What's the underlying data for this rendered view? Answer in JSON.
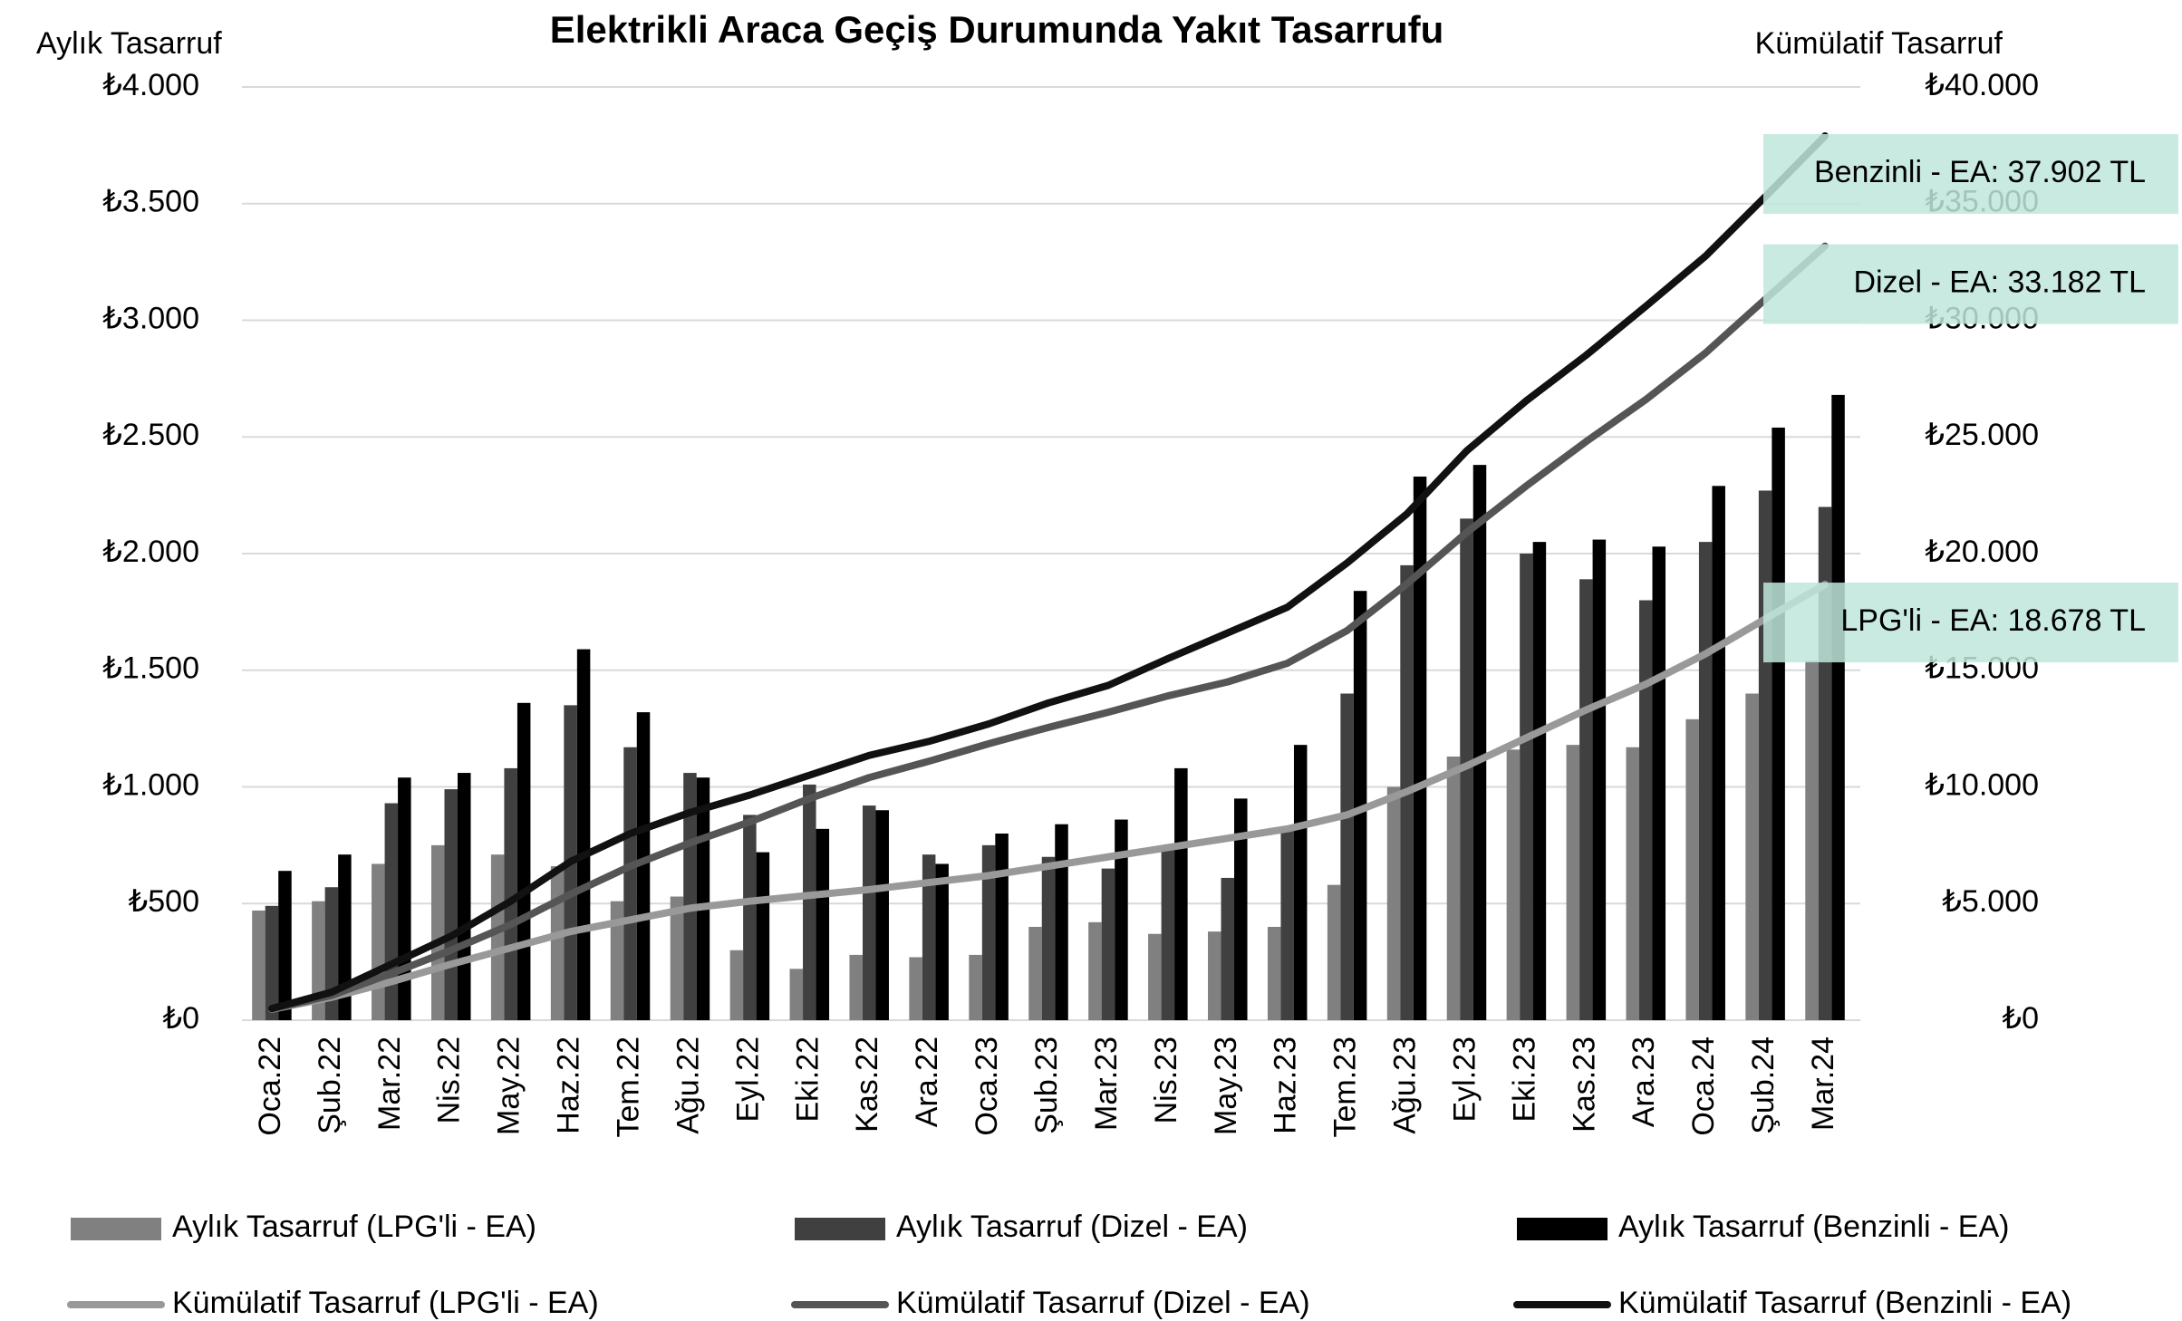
{
  "chart_data": {
    "type": "bar_line",
    "title": "Elektrikli Araca Geçiş Durumunda Yakıt Tasarrufu",
    "y_label": "Aylık Tasarruf",
    "y2_label": "Kümülatif Tasarruf",
    "categories": [
      "Oca.22",
      "Şub.22",
      "Mar.22",
      "Nis.22",
      "May.22",
      "Haz.22",
      "Tem.22",
      "Ağu.22",
      "Eyl.22",
      "Eki.22",
      "Kas.22",
      "Ara.22",
      "Oca.23",
      "Şub.23",
      "Mar.23",
      "Nis.23",
      "May.23",
      "Haz.23",
      "Tem.23",
      "Ağu.23",
      "Eyl.23",
      "Eki.23",
      "Kas.23",
      "Ara.23",
      "Oca.24",
      "Şub.24",
      "Mar.24"
    ],
    "series": [
      {
        "name": "Aylık Tasarruf (LPG'li - EA)",
        "type": "bar",
        "color": "#808080",
        "values": [
          470,
          510,
          670,
          750,
          710,
          660,
          510,
          530,
          300,
          220,
          280,
          270,
          280,
          400,
          420,
          370,
          380,
          400,
          580,
          1000,
          1130,
          1160,
          1180,
          1170,
          1290,
          1400,
          1540
        ]
      },
      {
        "name": "Aylık Tasarruf (Dizel - EA)",
        "type": "bar",
        "color": "#404040",
        "values": [
          490,
          570,
          930,
          990,
          1080,
          1350,
          1170,
          1060,
          880,
          1010,
          920,
          710,
          750,
          700,
          650,
          750,
          610,
          830,
          1400,
          1950,
          2150,
          2000,
          1890,
          1800,
          2050,
          2270,
          2200
        ]
      },
      {
        "name": "Aylık Tasarruf (Benzinli - EA)",
        "type": "bar",
        "color": "#000000",
        "values": [
          640,
          710,
          1040,
          1060,
          1360,
          1590,
          1320,
          1040,
          720,
          820,
          900,
          670,
          800,
          840,
          860,
          1080,
          950,
          1180,
          1840,
          2330,
          2380,
          2050,
          2060,
          2030,
          2290,
          2540,
          2680
        ]
      },
      {
        "name": "Kümülatif Tasarruf (LPG'li - EA)",
        "type": "line",
        "axis": "y2",
        "color": "#999999",
        "values": [
          470,
          980,
          1650,
          2400,
          3100,
          3800,
          4300,
          4800,
          5100,
          5350,
          5600,
          5900,
          6200,
          6600,
          7000,
          7400,
          7800,
          8200,
          8800,
          9800,
          10900,
          12100,
          13300,
          14400,
          15700,
          17200,
          18678
        ]
      },
      {
        "name": "Kümülatif Tasarruf (Dizel - EA)",
        "type": "line",
        "axis": "y2",
        "color": "#555555",
        "values": [
          490,
          1060,
          2000,
          3000,
          4100,
          5400,
          6600,
          7600,
          8500,
          9500,
          10400,
          11100,
          11850,
          12550,
          13200,
          13900,
          14500,
          15300,
          16700,
          18700,
          20900,
          22900,
          24800,
          26600,
          28600,
          30900,
          33182
        ]
      },
      {
        "name": "Kümülatif Tasarruf (Benzinli - EA)",
        "type": "line",
        "axis": "y2",
        "color": "#111111",
        "values": [
          500,
          1200,
          2400,
          3600,
          5100,
          6800,
          8000,
          8900,
          9650,
          10500,
          11350,
          11950,
          12700,
          13600,
          14350,
          15500,
          16600,
          17700,
          19600,
          21700,
          24400,
          26550,
          28500,
          30600,
          32750,
          35300,
          37902
        ]
      }
    ],
    "annotations": [
      {
        "text": "Benzinli - EA: 37.902 TL",
        "series": 5
      },
      {
        "text": "Dizel - EA: 33.182 TL",
        "series": 4
      },
      {
        "text": "LPG'li - EA: 18.678 TL",
        "series": 3
      }
    ],
    "annotation_color": "#bfe6dc",
    "ylim": [
      0,
      4000
    ],
    "yticks": [
      {
        "value": 0,
        "label": "₺0"
      },
      {
        "value": 500,
        "label": "₺500"
      },
      {
        "value": 1000,
        "label": "₺1.000"
      },
      {
        "value": 1500,
        "label": "₺1.500"
      },
      {
        "value": 2000,
        "label": "₺2.000"
      },
      {
        "value": 2500,
        "label": "₺2.500"
      },
      {
        "value": 3000,
        "label": "₺3.000"
      },
      {
        "value": 3500,
        "label": "₺3.500"
      },
      {
        "value": 4000,
        "label": "₺4.000"
      }
    ],
    "y2lim": [
      0,
      40000
    ],
    "y2ticks": [
      {
        "value": 0,
        "label": "₺0"
      },
      {
        "value": 5000,
        "label": "₺5.000"
      },
      {
        "value": 10000,
        "label": "₺10.000"
      },
      {
        "value": 15000,
        "label": "₺15.000"
      },
      {
        "value": 20000,
        "label": "₺20.000"
      },
      {
        "value": 25000,
        "label": "₺25.000"
      },
      {
        "value": 30000,
        "label": "₺30.000"
      },
      {
        "value": 35000,
        "label": "₺35.000"
      },
      {
        "value": 40000,
        "label": "₺40.000"
      }
    ],
    "grid": true,
    "legend": "bottom"
  }
}
